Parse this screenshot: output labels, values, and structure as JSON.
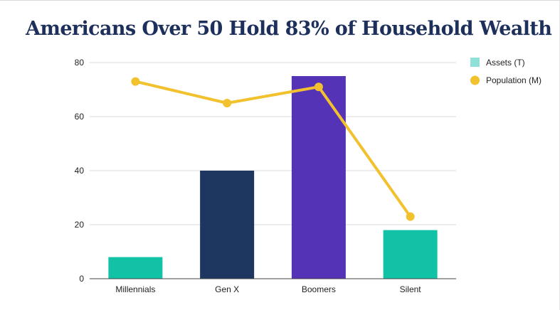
{
  "chart_data": {
    "type": "bar",
    "title": "Americans Over 50 Hold 83% of Household Wealth",
    "xlabel": "",
    "ylabel": "",
    "ylim": [
      0,
      80
    ],
    "yticks": [
      0,
      20,
      40,
      60,
      80
    ],
    "grid": true,
    "legend_position": "top-right",
    "categories": [
      "Millennials",
      "Gen X",
      "Boomers",
      "Silent"
    ],
    "series": [
      {
        "name": "Assets (T)",
        "kind": "bar",
        "values": [
          8,
          40,
          75,
          18
        ],
        "legend_color": "#8fe0d8",
        "bar_colors": [
          "#12c2a6",
          "#1d3761",
          "#5533b6",
          "#12c2a6"
        ]
      },
      {
        "name": "Population (M)",
        "kind": "line",
        "values": [
          73,
          65,
          71,
          23
        ],
        "color": "#f2c12e"
      }
    ]
  }
}
